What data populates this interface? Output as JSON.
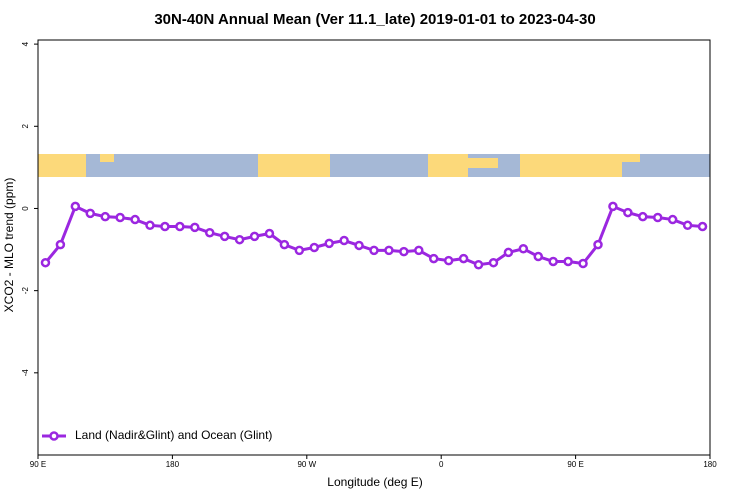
{
  "chart_data": {
    "type": "line",
    "title": "30N-40N Annual Mean (Ver 11.1_late)   2019-01-01 to 2023-04-30",
    "x_label": "Longitude (deg E)",
    "y_label": "XCO2 - MLO trend (ppm)",
    "xlim": [
      90,
      540
    ],
    "ylim": [
      -6,
      4.1
    ],
    "xticks": [
      {
        "value": 90,
        "label": "90 E"
      },
      {
        "value": 180,
        "label": "180"
      },
      {
        "value": 270,
        "label": "90 W"
      },
      {
        "value": 360,
        "label": "0"
      },
      {
        "value": 450,
        "label": "90 E"
      },
      {
        "value": 540,
        "label": "180"
      }
    ],
    "yticks": [
      4,
      2,
      0,
      -2,
      -4
    ],
    "legend": "bottom-left",
    "x": [
      95,
      105,
      115,
      125,
      135,
      145,
      155,
      165,
      175,
      185,
      195,
      205,
      215,
      225,
      235,
      245,
      255,
      265,
      275,
      285,
      295,
      305,
      315,
      325,
      335,
      345,
      355,
      365,
      375,
      385,
      395,
      405,
      415,
      425,
      435,
      445,
      455,
      465,
      475,
      485,
      495,
      505,
      515,
      525,
      535
    ],
    "series": [
      {
        "name": "Land (Nadir&Glint) and Ocean (Glint)",
        "color": "#9b27e0",
        "values": [
          -1.32,
          -0.88,
          0.05,
          -0.12,
          -0.2,
          -0.22,
          -0.27,
          -0.41,
          -0.44,
          -0.44,
          -0.46,
          -0.59,
          -0.68,
          -0.76,
          -0.68,
          -0.61,
          -0.88,
          -1.02,
          -0.95,
          -0.85,
          -0.78,
          -0.9,
          -1.02,
          -1.02,
          -1.05,
          -1.02,
          -1.22,
          -1.27,
          -1.22,
          -1.37,
          -1.32,
          -1.07,
          -0.98,
          -1.17,
          -1.29,
          -1.29,
          -1.34,
          -0.88,
          0.05,
          -0.1,
          -0.2,
          -0.22,
          -0.27,
          -0.41,
          -0.44
        ]
      }
    ]
  }
}
